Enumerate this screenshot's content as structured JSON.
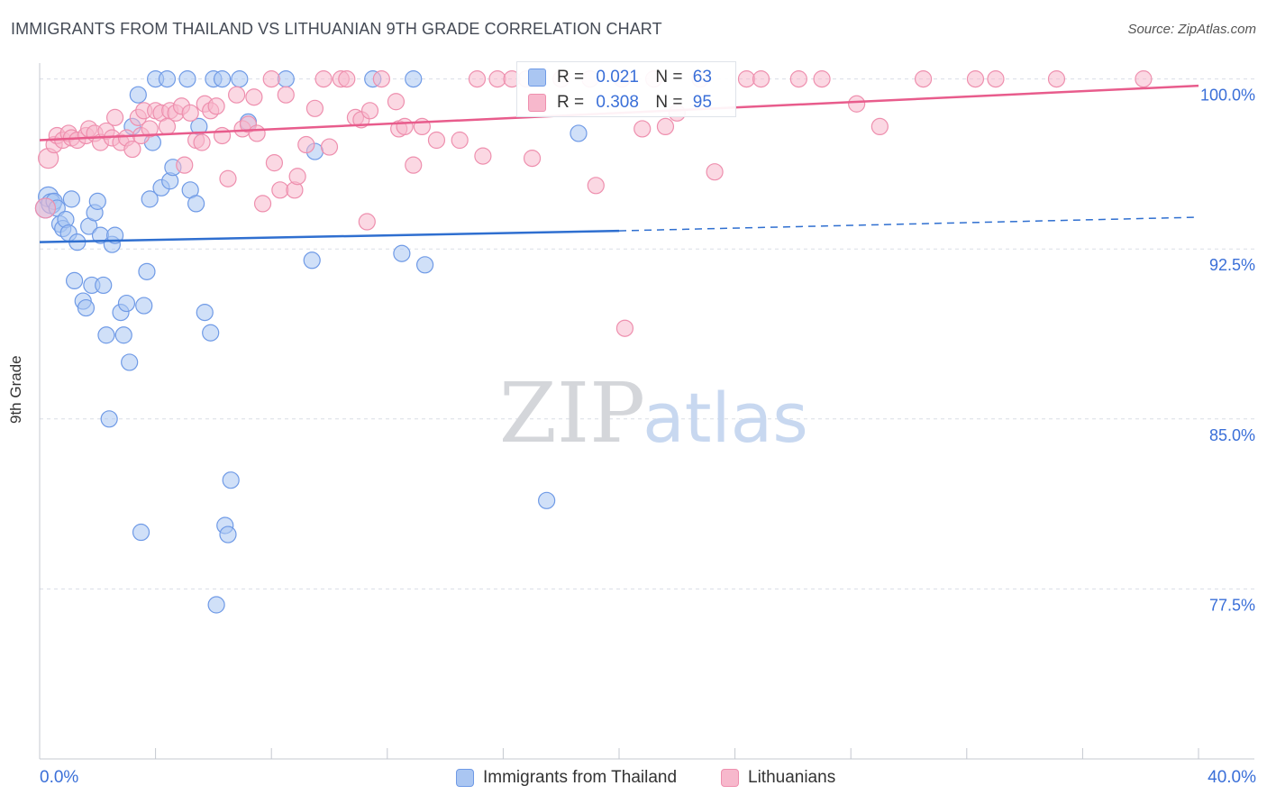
{
  "title": "IMMIGRANTS FROM THAILAND VS LITHUANIAN 9TH GRADE CORRELATION CHART",
  "source": "Source: ZipAtlas.com",
  "watermark": {
    "zip": "ZIP",
    "atlas": "atlas"
  },
  "colors": {
    "blue_fill": "#aac6f2",
    "blue_stroke": "#6f9ae6",
    "blue_line": "#2f6fd0",
    "pink_fill": "#f7b8cc",
    "pink_stroke": "#ee8fae",
    "pink_line": "#e85c8c",
    "axis_label": "#3a6fd8",
    "grid": "#d9dde6"
  },
  "legend_inset": {
    "rows": [
      {
        "r_label": "R =",
        "r_value": "0.021",
        "n_label": "N =",
        "n_value": "63"
      },
      {
        "r_label": "R =",
        "r_value": "0.308",
        "n_label": "N =",
        "n_value": "95"
      }
    ]
  },
  "legend_bottom": [
    "Immigrants from Thailand",
    "Lithuanians"
  ],
  "chart_data": {
    "type": "scatter",
    "title": "IMMIGRANTS FROM THAILAND VS LITHUANIAN 9TH GRADE CORRELATION CHART",
    "xlabel": "",
    "ylabel": "9th Grade",
    "xlim": [
      0,
      40
    ],
    "ylim": [
      70.0,
      100.7
    ],
    "x_tick_labels": [
      "0.0%",
      "40.0%"
    ],
    "y_ticks": [
      77.5,
      85.0,
      92.5,
      100.0
    ],
    "y_tick_labels": [
      "77.5%",
      "85.0%",
      "92.5%",
      "100.0%"
    ],
    "grid": true,
    "series": [
      {
        "name": "Immigrants from Thailand",
        "trend": {
          "x": [
            0,
            20,
            40
          ],
          "y": [
            92.8,
            93.3,
            93.9
          ],
          "solid_until": 20
        },
        "points": [
          [
            0.2,
            94.3
          ],
          [
            0.3,
            94.8
          ],
          [
            0.4,
            94.5
          ],
          [
            0.5,
            94.6
          ],
          [
            0.6,
            94.3
          ],
          [
            0.7,
            93.6
          ],
          [
            0.8,
            93.4
          ],
          [
            0.9,
            93.8
          ],
          [
            1.0,
            93.2
          ],
          [
            1.1,
            94.7
          ],
          [
            1.3,
            92.8
          ],
          [
            1.2,
            91.1
          ],
          [
            1.5,
            90.2
          ],
          [
            1.6,
            89.9
          ],
          [
            1.7,
            93.5
          ],
          [
            1.8,
            90.9
          ],
          [
            1.9,
            94.1
          ],
          [
            2.0,
            94.6
          ],
          [
            2.1,
            93.1
          ],
          [
            2.2,
            90.9
          ],
          [
            2.3,
            88.7
          ],
          [
            2.4,
            85.0
          ],
          [
            2.5,
            92.7
          ],
          [
            2.6,
            93.1
          ],
          [
            2.8,
            89.7
          ],
          [
            2.9,
            88.7
          ],
          [
            3.0,
            90.1
          ],
          [
            3.1,
            87.5
          ],
          [
            3.2,
            97.9
          ],
          [
            3.4,
            99.3
          ],
          [
            3.5,
            80.0
          ],
          [
            3.6,
            90.0
          ],
          [
            3.7,
            91.5
          ],
          [
            3.8,
            94.7
          ],
          [
            4.0,
            100.0
          ],
          [
            3.9,
            97.2
          ],
          [
            4.2,
            95.2
          ],
          [
            4.4,
            100.0
          ],
          [
            4.5,
            95.5
          ],
          [
            4.6,
            96.1
          ],
          [
            5.1,
            100.0
          ],
          [
            5.2,
            95.1
          ],
          [
            5.4,
            94.5
          ],
          [
            5.5,
            97.9
          ],
          [
            5.7,
            89.7
          ],
          [
            5.9,
            88.8
          ],
          [
            6.0,
            100.0
          ],
          [
            6.1,
            76.8
          ],
          [
            6.3,
            100.0
          ],
          [
            6.4,
            80.3
          ],
          [
            6.5,
            79.9
          ],
          [
            6.6,
            82.3
          ],
          [
            6.9,
            100.0
          ],
          [
            7.2,
            98.1
          ],
          [
            8.5,
            100.0
          ],
          [
            9.4,
            92.0
          ],
          [
            9.5,
            96.8
          ],
          [
            11.5,
            100.0
          ],
          [
            12.5,
            92.3
          ],
          [
            12.9,
            100.0
          ],
          [
            13.3,
            91.8
          ],
          [
            17.5,
            81.4
          ],
          [
            18.6,
            97.6
          ]
        ]
      },
      {
        "name": "Lithuanians",
        "trend": {
          "x": [
            0,
            40
          ],
          "y": [
            97.3,
            99.7
          ]
        },
        "points": [
          [
            0.2,
            94.3
          ],
          [
            0.3,
            96.5
          ],
          [
            0.5,
            97.1
          ],
          [
            0.6,
            97.5
          ],
          [
            0.8,
            97.3
          ],
          [
            1.0,
            97.6
          ],
          [
            1.1,
            97.4
          ],
          [
            1.3,
            97.3
          ],
          [
            1.6,
            97.5
          ],
          [
            1.7,
            97.8
          ],
          [
            1.9,
            97.6
          ],
          [
            2.1,
            97.2
          ],
          [
            2.3,
            97.7
          ],
          [
            2.5,
            97.4
          ],
          [
            2.6,
            98.3
          ],
          [
            2.8,
            97.2
          ],
          [
            3.0,
            97.4
          ],
          [
            3.2,
            96.9
          ],
          [
            3.4,
            98.3
          ],
          [
            3.5,
            97.5
          ],
          [
            3.6,
            98.6
          ],
          [
            3.8,
            97.8
          ],
          [
            4.0,
            98.6
          ],
          [
            4.2,
            98.5
          ],
          [
            4.4,
            97.9
          ],
          [
            4.5,
            98.6
          ],
          [
            4.7,
            98.5
          ],
          [
            4.9,
            98.8
          ],
          [
            5.0,
            96.2
          ],
          [
            5.2,
            98.5
          ],
          [
            5.4,
            97.3
          ],
          [
            5.6,
            97.2
          ],
          [
            5.7,
            98.9
          ],
          [
            5.9,
            98.6
          ],
          [
            6.1,
            98.8
          ],
          [
            6.3,
            97.5
          ],
          [
            6.5,
            95.6
          ],
          [
            6.8,
            99.3
          ],
          [
            7.0,
            97.8
          ],
          [
            7.2,
            98.0
          ],
          [
            7.4,
            99.2
          ],
          [
            7.5,
            97.6
          ],
          [
            7.7,
            94.5
          ],
          [
            8.0,
            100.0
          ],
          [
            8.1,
            96.3
          ],
          [
            8.3,
            95.1
          ],
          [
            8.5,
            99.3
          ],
          [
            8.8,
            95.1
          ],
          [
            8.9,
            95.7
          ],
          [
            9.2,
            97.1
          ],
          [
            9.5,
            98.7
          ],
          [
            9.8,
            100.0
          ],
          [
            10.0,
            97.0
          ],
          [
            10.4,
            100.0
          ],
          [
            10.6,
            100.0
          ],
          [
            10.9,
            98.3
          ],
          [
            11.1,
            98.2
          ],
          [
            11.3,
            93.7
          ],
          [
            11.4,
            98.6
          ],
          [
            11.8,
            100.0
          ],
          [
            12.3,
            99.0
          ],
          [
            12.4,
            97.8
          ],
          [
            12.6,
            97.9
          ],
          [
            12.9,
            96.2
          ],
          [
            13.2,
            97.9
          ],
          [
            13.7,
            97.3
          ],
          [
            14.5,
            97.3
          ],
          [
            15.1,
            100.0
          ],
          [
            15.3,
            96.6
          ],
          [
            15.8,
            100.0
          ],
          [
            16.3,
            100.0
          ],
          [
            16.8,
            100.0
          ],
          [
            17.0,
            96.5
          ],
          [
            18.0,
            100.0
          ],
          [
            19.0,
            100.0
          ],
          [
            19.2,
            95.3
          ],
          [
            20.1,
            100.0
          ],
          [
            20.2,
            89.0
          ],
          [
            20.8,
            97.8
          ],
          [
            21.2,
            100.0
          ],
          [
            21.6,
            97.9
          ],
          [
            22.0,
            98.5
          ],
          [
            22.8,
            100.0
          ],
          [
            23.3,
            95.9
          ],
          [
            24.4,
            100.0
          ],
          [
            24.9,
            100.0
          ],
          [
            26.2,
            100.0
          ],
          [
            27.0,
            100.0
          ],
          [
            28.2,
            98.9
          ],
          [
            29.0,
            97.9
          ],
          [
            30.5,
            100.0
          ],
          [
            32.3,
            100.0
          ],
          [
            33.0,
            100.0
          ],
          [
            35.1,
            100.0
          ],
          [
            38.1,
            100.0
          ]
        ]
      }
    ]
  }
}
